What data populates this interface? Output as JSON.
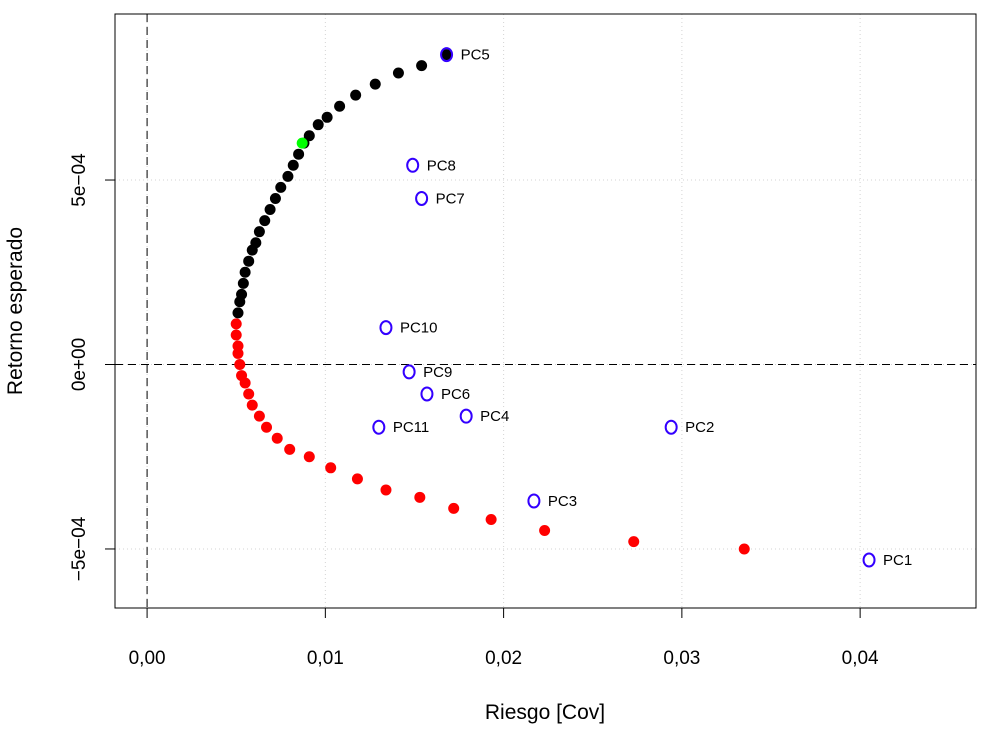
{
  "chart_data": {
    "type": "scatter",
    "title": "",
    "xlabel": "Riesgo [Cov]",
    "ylabel": "Retorno esperado",
    "xlim": [
      -0.0018,
      0.0465
    ],
    "ylim": [
      -0.00066,
      0.00095
    ],
    "x_ticks": [
      {
        "value": 0.0,
        "label": "0,00"
      },
      {
        "value": 0.01,
        "label": "0,01"
      },
      {
        "value": 0.02,
        "label": "0,02"
      },
      {
        "value": 0.03,
        "label": "0,03"
      },
      {
        "value": 0.04,
        "label": "0,04"
      }
    ],
    "y_ticks": [
      {
        "value": -0.0005,
        "label": "−5e−04"
      },
      {
        "value": 0.0,
        "label": "0e+00"
      },
      {
        "value": 0.0005,
        "label": "5e−04"
      }
    ],
    "grid": "dotted",
    "reference_lines": {
      "x": 0,
      "y": 0
    },
    "colors": {
      "efficient": "#000000",
      "inefficient": "#ff0000",
      "optimal": "#00ff00",
      "assets": "#3300ff"
    },
    "series": [
      {
        "name": "efficient-frontier",
        "color": "#000000",
        "x": [
          0.0168,
          0.0154,
          0.0141,
          0.0128,
          0.0117,
          0.0108,
          0.0101,
          0.0096,
          0.0091,
          0.0088,
          0.0085,
          0.0082,
          0.0079,
          0.0075,
          0.0072,
          0.0069,
          0.0066,
          0.0063,
          0.0061,
          0.0059,
          0.0057,
          0.0055,
          0.0054,
          0.0053,
          0.0052,
          0.0051
        ],
        "y": [
          0.00084,
          0.00081,
          0.00079,
          0.00076,
          0.00073,
          0.0007,
          0.00067,
          0.00065,
          0.00062,
          0.0006,
          0.00057,
          0.00054,
          0.00051,
          0.00048,
          0.00045,
          0.00042,
          0.00039,
          0.00036,
          0.00033,
          0.00031,
          0.00028,
          0.00025,
          0.00022,
          0.00019,
          0.00017,
          0.00014
        ]
      },
      {
        "name": "inefficient-frontier",
        "color": "#ff0000",
        "x": [
          0.005,
          0.005,
          0.0051,
          0.0051,
          0.0052,
          0.0053,
          0.0055,
          0.0057,
          0.0059,
          0.0063,
          0.0067,
          0.0073,
          0.008,
          0.0091,
          0.0103,
          0.0118,
          0.0134,
          0.0153,
          0.0172,
          0.0193,
          0.0223,
          0.0273,
          0.0335
        ],
        "y": [
          0.00011,
          8e-05,
          5e-05,
          3e-05,
          0.0,
          -3e-05,
          -5e-05,
          -8e-05,
          -0.00011,
          -0.00014,
          -0.00017,
          -0.0002,
          -0.00023,
          -0.00025,
          -0.00028,
          -0.00031,
          -0.00034,
          -0.00036,
          -0.00039,
          -0.00042,
          -0.00045,
          -0.00048,
          -0.0005
        ]
      },
      {
        "name": "optimal-portfolio",
        "color": "#00ff00",
        "x": [
          0.0087
        ],
        "y": [
          0.0006
        ]
      }
    ],
    "labeled_points": [
      {
        "label": "PC1",
        "x": 0.0405,
        "y": -0.00053
      },
      {
        "label": "PC2",
        "x": 0.0294,
        "y": -0.00017
      },
      {
        "label": "PC3",
        "x": 0.0217,
        "y": -0.00037
      },
      {
        "label": "PC4",
        "x": 0.0179,
        "y": -0.00014
      },
      {
        "label": "PC5",
        "x": 0.0168,
        "y": 0.00084
      },
      {
        "label": "PC6",
        "x": 0.0157,
        "y": -8e-05
      },
      {
        "label": "PC7",
        "x": 0.0154,
        "y": 0.00045
      },
      {
        "label": "PC8",
        "x": 0.0149,
        "y": 0.00054
      },
      {
        "label": "PC9",
        "x": 0.0147,
        "y": -2e-05
      },
      {
        "label": "PC10",
        "x": 0.0134,
        "y": 0.0001
      },
      {
        "label": "PC11",
        "x": 0.013,
        "y": -0.00017
      }
    ]
  }
}
